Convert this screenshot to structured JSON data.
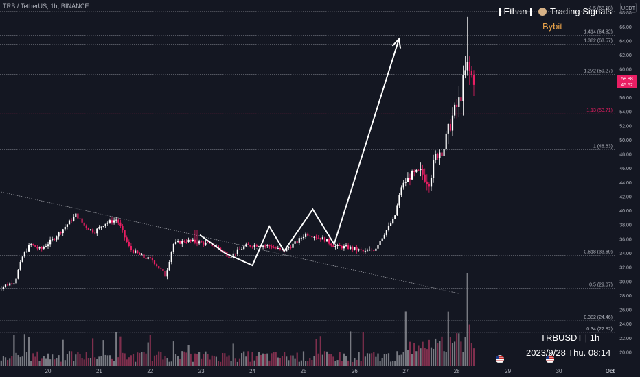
{
  "header": {
    "symbol": "TRB / TetherUS, 1h, BINANCE"
  },
  "currency": "USDT",
  "watermark": {
    "name": "Ethan",
    "subtitle": "Trading Signals",
    "exchange": "Bybit",
    "pair": "TRBUSDT | 1h",
    "datetime": "2023/9/28 Thu. 08:14"
  },
  "price_tag": {
    "price": "58.88",
    "countdown": "45:52"
  },
  "colors": {
    "background": "#141722",
    "up": "#ffffff",
    "down": "#e91e63",
    "volume_up": "#9a9ca3",
    "volume_down": "#a3385c",
    "fib_line": "#9598a1",
    "fib_highlight": "#e91e63",
    "drawing": "#ffffff"
  },
  "chart_data": {
    "type": "candlestick",
    "symbol": "TRB / TetherUS",
    "interval": "1h",
    "exchange": "BINANCE",
    "ylim": [
      18,
      68
    ],
    "y_ticks": [
      "20.00",
      "22.00",
      "24.00",
      "26.00",
      "28.00",
      "30.00",
      "32.00",
      "34.00",
      "36.00",
      "38.00",
      "40.00",
      "42.00",
      "44.00",
      "46.00",
      "48.00",
      "50.00",
      "52.00",
      "54.00",
      "56.00",
      "58.00",
      "60.00",
      "62.00",
      "64.00",
      "66.00",
      "68.00"
    ],
    "x_ticks": [
      "20",
      "21",
      "22",
      "23",
      "24",
      "25",
      "26",
      "27",
      "28",
      "29",
      "30",
      "Oct"
    ],
    "last_price": 58.88,
    "fib_levels": [
      {
        "ratio": "1.5",
        "price": 68.18,
        "label": "1.5 (68.18)"
      },
      {
        "ratio": "1.414",
        "price": 64.82,
        "label": "1.414 (64.82)"
      },
      {
        "ratio": "1.382",
        "price": 63.57,
        "label": "1.382 (63.57)"
      },
      {
        "ratio": "1.272",
        "price": 59.27,
        "label": "1.272 (59.27)"
      },
      {
        "ratio": "1.13",
        "price": 53.71,
        "label": "1.13 (53.71)",
        "highlight": true
      },
      {
        "ratio": "1",
        "price": 48.63,
        "label": "1 (48.63)"
      },
      {
        "ratio": "0.618",
        "price": 33.69,
        "label": "0.618 (33.69)"
      },
      {
        "ratio": "0.5",
        "price": 29.07,
        "label": "0.5 (29.07)"
      },
      {
        "ratio": "0.382",
        "price": 24.46,
        "label": "0.382 (24.46)"
      },
      {
        "ratio": "0.34",
        "price": 22.82,
        "label": "0.34 (22.82)"
      }
    ],
    "trendline": {
      "start": {
        "day": 19.0,
        "price": 42.8
      },
      "end": {
        "day": 28.05,
        "price": 28.3
      }
    },
    "zigzag": [
      {
        "day": 22.97,
        "price": 36.6
      },
      {
        "day": 23.47,
        "price": 34.0
      },
      {
        "day": 24.0,
        "price": 32.3
      },
      {
        "day": 24.33,
        "price": 37.8
      },
      {
        "day": 24.62,
        "price": 34.3
      },
      {
        "day": 25.18,
        "price": 40.2
      },
      {
        "day": 25.6,
        "price": 35.3
      },
      {
        "day": 26.87,
        "price": 64.3
      }
    ],
    "price_path": [
      {
        "day": 19.0,
        "price": 29.0
      },
      {
        "day": 19.35,
        "price": 30.0
      },
      {
        "day": 19.5,
        "price": 33.5
      },
      {
        "day": 19.65,
        "price": 35.3
      },
      {
        "day": 19.85,
        "price": 34.5
      },
      {
        "day": 20.1,
        "price": 36.0
      },
      {
        "day": 20.3,
        "price": 37.5
      },
      {
        "day": 20.55,
        "price": 39.5
      },
      {
        "day": 20.7,
        "price": 38.0
      },
      {
        "day": 20.9,
        "price": 37.0
      },
      {
        "day": 21.1,
        "price": 38.2
      },
      {
        "day": 21.35,
        "price": 38.8
      },
      {
        "day": 21.6,
        "price": 34.6
      },
      {
        "day": 21.85,
        "price": 33.5
      },
      {
        "day": 22.05,
        "price": 33.0
      },
      {
        "day": 22.3,
        "price": 30.8
      },
      {
        "day": 22.45,
        "price": 35.3
      },
      {
        "day": 22.7,
        "price": 35.8
      },
      {
        "day": 23.0,
        "price": 35.5
      },
      {
        "day": 23.3,
        "price": 35.0
      },
      {
        "day": 23.55,
        "price": 33.5
      },
      {
        "day": 23.85,
        "price": 35.0
      },
      {
        "day": 24.1,
        "price": 35.2
      },
      {
        "day": 24.35,
        "price": 35.0
      },
      {
        "day": 24.6,
        "price": 34.3
      },
      {
        "day": 24.85,
        "price": 35.5
      },
      {
        "day": 25.05,
        "price": 36.8
      },
      {
        "day": 25.4,
        "price": 36.0
      },
      {
        "day": 25.6,
        "price": 35.0
      },
      {
        "day": 25.9,
        "price": 34.8
      },
      {
        "day": 26.2,
        "price": 34.2
      },
      {
        "day": 26.4,
        "price": 34.6
      },
      {
        "day": 26.6,
        "price": 37.0
      },
      {
        "day": 26.78,
        "price": 39.0
      },
      {
        "day": 26.92,
        "price": 43.5
      },
      {
        "day": 27.1,
        "price": 45.0
      },
      {
        "day": 27.3,
        "price": 45.5
      },
      {
        "day": 27.45,
        "price": 44.0
      },
      {
        "day": 27.6,
        "price": 48.0
      },
      {
        "day": 27.75,
        "price": 49.0
      },
      {
        "day": 27.9,
        "price": 53.0
      },
      {
        "day": 28.05,
        "price": 55.5
      },
      {
        "day": 28.2,
        "price": 60.5
      },
      {
        "day": 28.28,
        "price": 59.0
      },
      {
        "day": 28.34,
        "price": 58.88
      }
    ],
    "volume_spike": {
      "day": 28.2,
      "relative": 1.0
    }
  }
}
